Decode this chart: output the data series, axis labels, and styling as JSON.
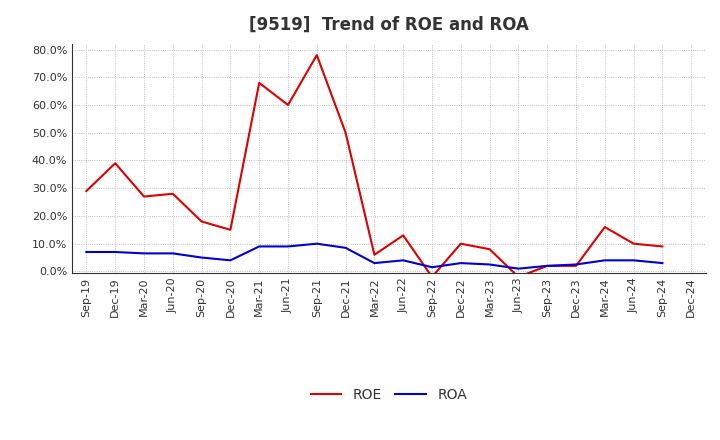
{
  "title": "[9519]  Trend of ROE and ROA",
  "x_labels": [
    "Sep-19",
    "Dec-19",
    "Mar-20",
    "Jun-20",
    "Sep-20",
    "Dec-20",
    "Mar-21",
    "Jun-21",
    "Sep-21",
    "Dec-21",
    "Mar-22",
    "Jun-22",
    "Sep-22",
    "Dec-22",
    "Mar-23",
    "Jun-23",
    "Sep-23",
    "Dec-23",
    "Mar-24",
    "Jun-24",
    "Sep-24",
    "Dec-24"
  ],
  "roe": [
    0.29,
    0.39,
    0.27,
    0.28,
    0.18,
    0.15,
    0.68,
    0.6,
    0.78,
    0.5,
    0.06,
    0.13,
    -0.02,
    0.1,
    0.08,
    -0.02,
    0.02,
    0.02,
    0.16,
    0.1,
    0.09,
    null
  ],
  "roa": [
    0.07,
    0.07,
    0.065,
    0.065,
    0.05,
    0.04,
    0.09,
    0.09,
    0.1,
    0.085,
    0.03,
    0.04,
    0.015,
    0.03,
    0.025,
    0.01,
    0.02,
    0.025,
    0.04,
    0.04,
    0.03,
    null
  ],
  "roe_color": "#dd0000",
  "roa_color": "#0000cc",
  "background_color": "#ffffff",
  "grid_color": "#999999",
  "ylim": [
    -0.005,
    0.82
  ],
  "yticks": [
    0.0,
    0.1,
    0.2,
    0.3,
    0.4,
    0.5,
    0.6,
    0.7,
    0.8
  ],
  "title_fontsize": 12,
  "title_color": "#333333",
  "tick_fontsize": 8,
  "legend_labels": [
    "ROE",
    "ROA"
  ],
  "legend_fontsize": 10
}
